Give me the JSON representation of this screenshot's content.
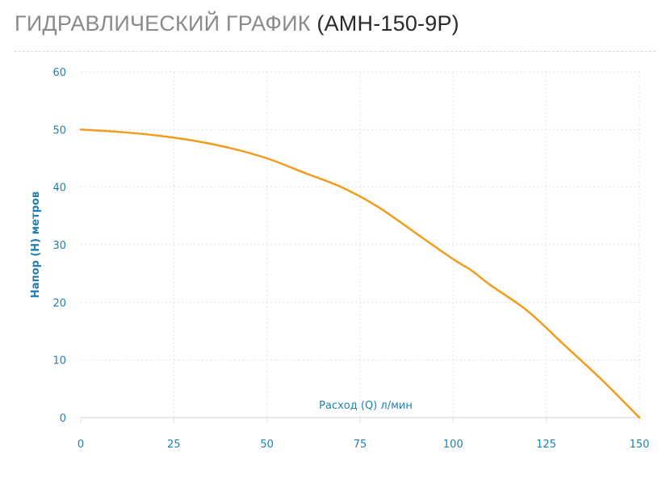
{
  "title": {
    "main": "ГИДРАВЛИЧЕСКИЙ ГРАФИК",
    "model": "(АМН-150-9Р)"
  },
  "colors": {
    "title_main": "#8a8a8a",
    "title_model": "#2a2a2a",
    "axis_text": "#1f7fb0",
    "curve": "#f39b1a",
    "grid": "#e2e2e2"
  },
  "chart_data": {
    "type": "line",
    "xlabel": "Расход (Q) л/мин",
    "ylabel": "Напор (H) метров",
    "xlim": [
      0,
      150
    ],
    "ylim": [
      0,
      60
    ],
    "x_ticks": [
      0,
      25,
      50,
      75,
      100,
      125,
      150
    ],
    "y_ticks": [
      0,
      10,
      20,
      30,
      40,
      50,
      60
    ],
    "grid": true,
    "series": [
      {
        "x": [
          0,
          10,
          20,
          30,
          40,
          50,
          60,
          70,
          80,
          90,
          100,
          105,
          110,
          120,
          130,
          140,
          150
        ],
        "y": [
          50,
          49.6,
          49,
          48.1,
          46.8,
          45,
          42.5,
          40,
          36.5,
          32,
          27.5,
          25.5,
          23,
          18.5,
          12.5,
          6.5,
          0
        ]
      }
    ]
  }
}
